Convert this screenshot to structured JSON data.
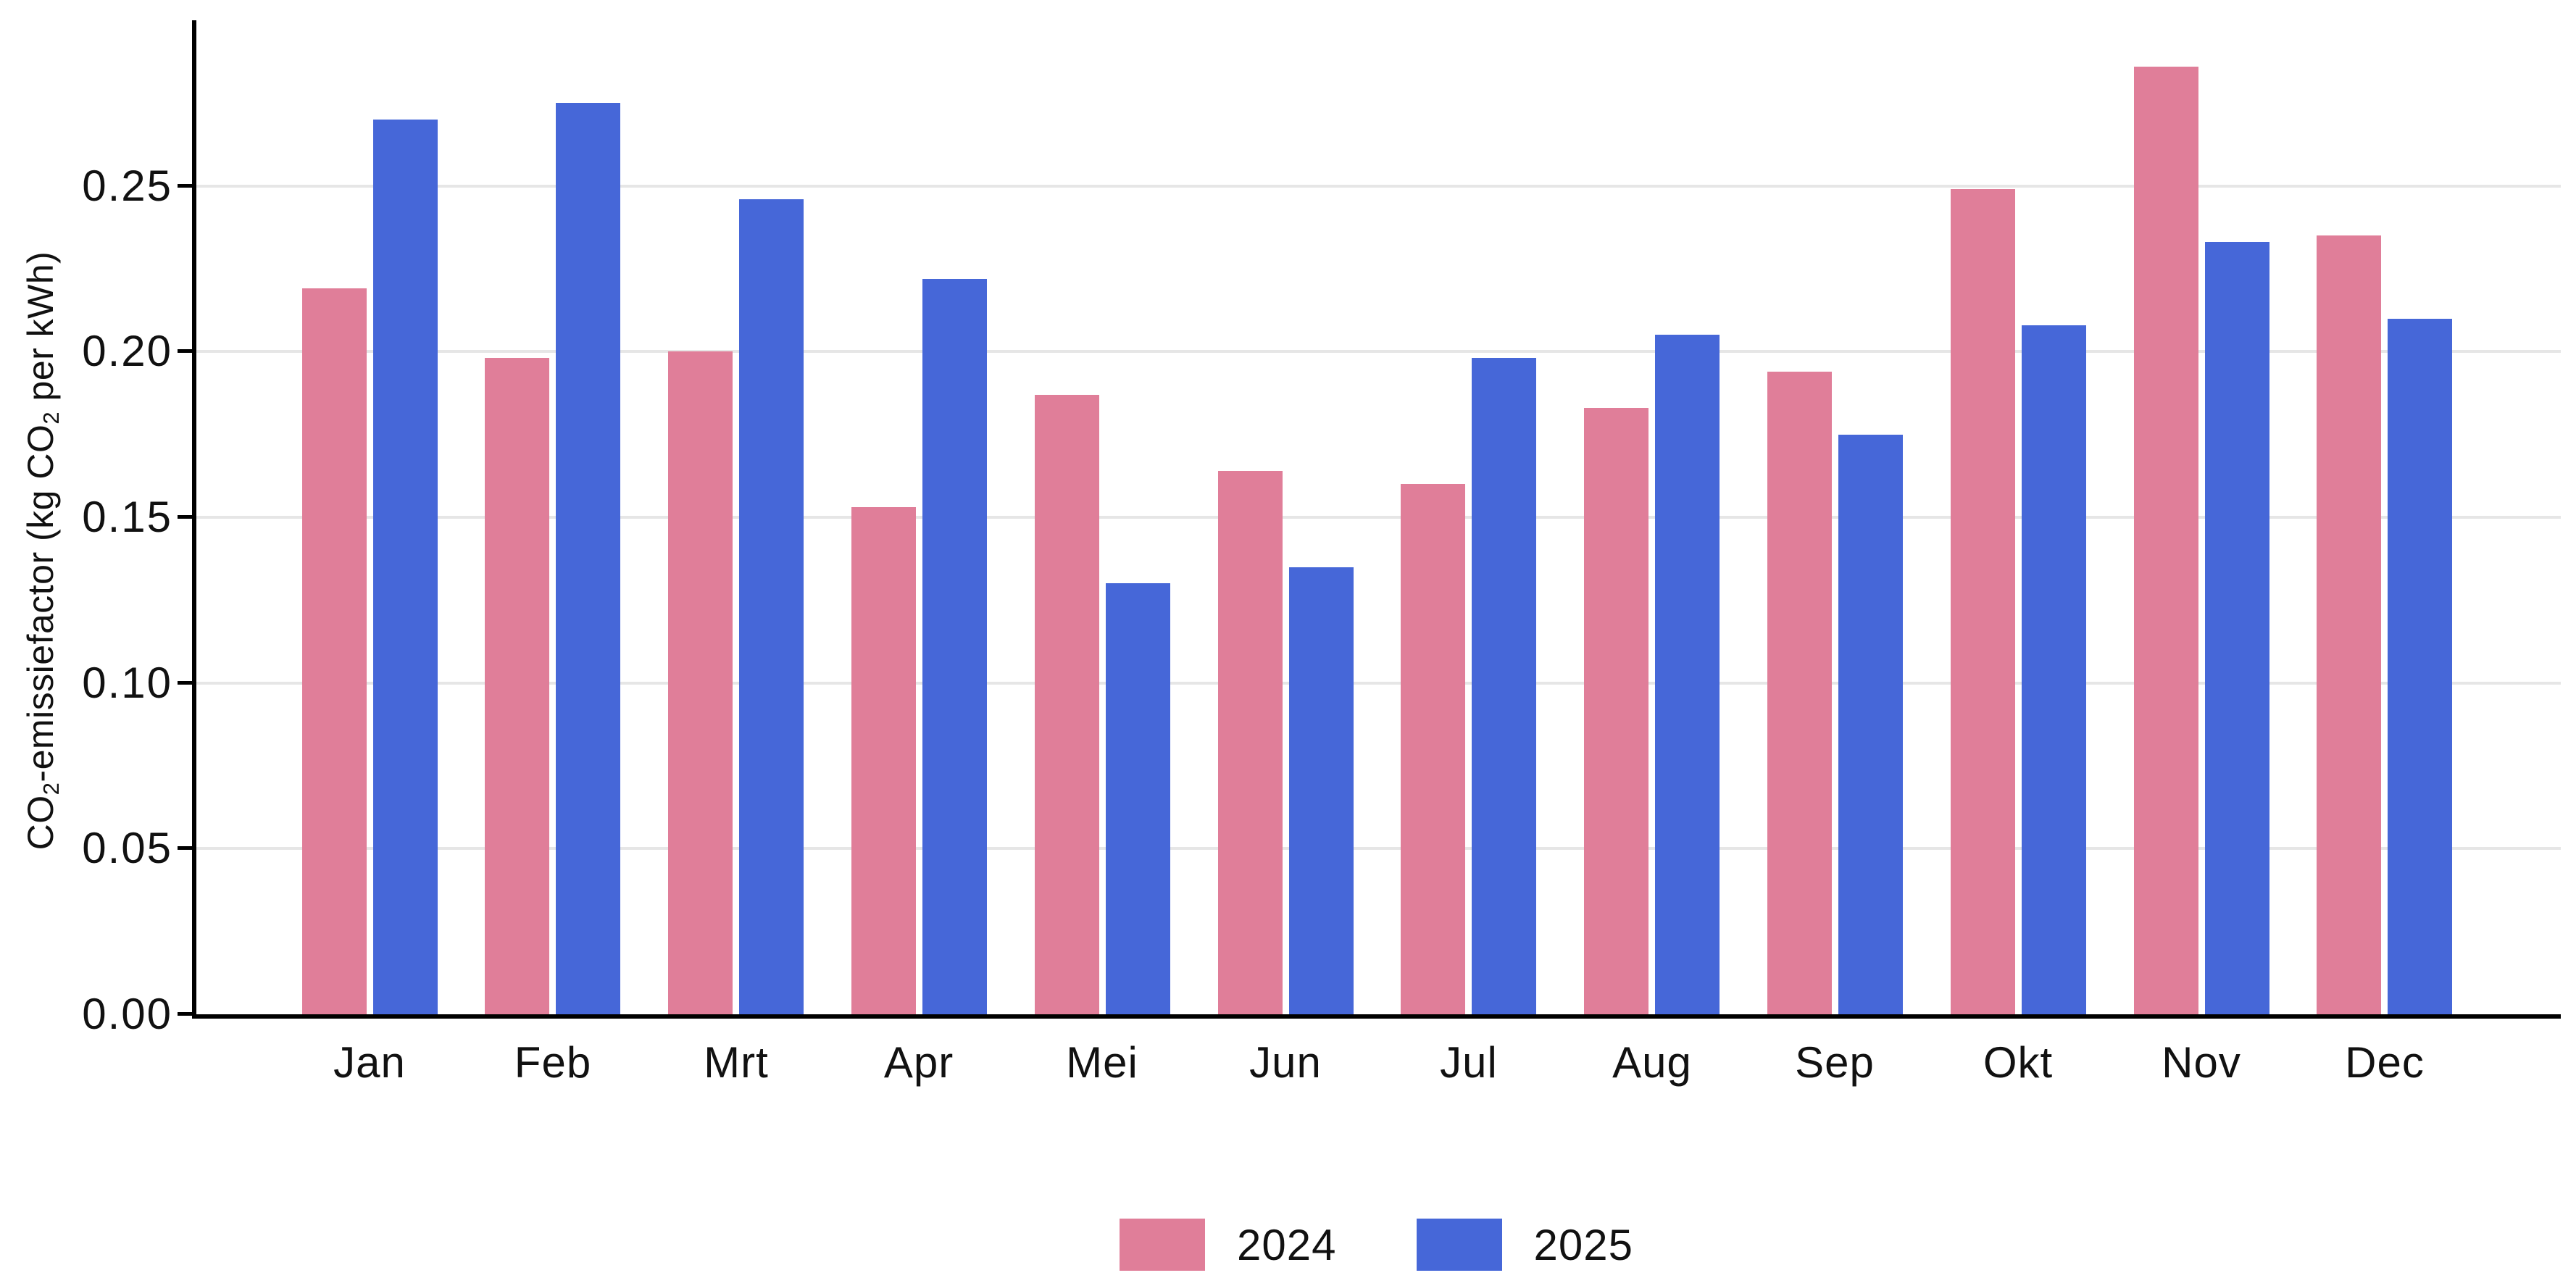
{
  "chart_data": {
    "type": "bar",
    "title": "",
    "categories": [
      "Jan",
      "Feb",
      "Mrt",
      "Apr",
      "Mei",
      "Jun",
      "Jul",
      "Aug",
      "Sep",
      "Okt",
      "Nov",
      "Dec"
    ],
    "series": [
      {
        "name": "2024",
        "color": "#e07e99",
        "values": [
          0.219,
          0.198,
          0.2,
          0.153,
          0.187,
          0.164,
          0.16,
          0.183,
          0.194,
          0.249,
          0.286,
          0.235
        ]
      },
      {
        "name": "2025",
        "color": "#4667d8",
        "values": [
          0.27,
          0.275,
          0.246,
          0.222,
          0.13,
          0.135,
          0.198,
          0.205,
          0.175,
          0.208,
          0.233,
          0.21
        ]
      }
    ],
    "xlabel": "",
    "ylabel": "CO2-emissiefactor (kg CO2 per kWh)",
    "ylabel_parts": [
      {
        "text": "CO",
        "sub": false
      },
      {
        "text": "2",
        "sub": true
      },
      {
        "text": "-emissiefactor (kg CO",
        "sub": false
      },
      {
        "text": "2",
        "sub": true
      },
      {
        "text": " per kWh)",
        "sub": false
      }
    ],
    "y_tick_labels": [
      "0.00",
      "0.05",
      "0.10",
      "0.15",
      "0.20",
      "0.25"
    ],
    "y_tick_values": [
      0,
      0.05,
      0.1,
      0.15,
      0.2,
      0.25
    ],
    "ylim": [
      0,
      0.3
    ],
    "grid": "horizontal-only",
    "legend_position": "bottom-center",
    "colors": {
      "axis": "#000000",
      "gridline": "#e6e6e6",
      "text": "#111111",
      "background": "#ffffff"
    }
  }
}
